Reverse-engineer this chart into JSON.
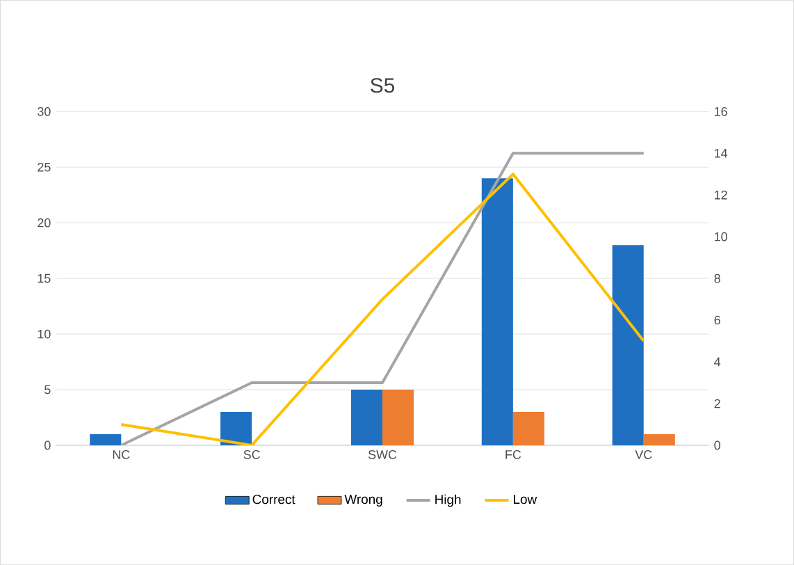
{
  "chart_data": {
    "type": "bar",
    "title": "S5",
    "categories": [
      "NC",
      "SC",
      "SWC",
      "FC",
      "VC"
    ],
    "series": [
      {
        "name": "Correct",
        "color": "#1f70c1",
        "values": [
          1,
          3,
          5,
          24,
          18
        ]
      },
      {
        "name": "Wrong",
        "color": "#ed7d31",
        "values": [
          0,
          0,
          5,
          3,
          1
        ]
      },
      {
        "name": "High",
        "type": "line",
        "axis": "y2",
        "color": "#a5a5a5",
        "values": [
          0,
          3,
          3,
          14,
          14
        ]
      },
      {
        "name": "Low",
        "type": "line",
        "axis": "y2",
        "color": "#ffc000",
        "values": [
          1,
          0,
          7,
          13,
          5
        ]
      }
    ],
    "ylim": [
      0,
      30
    ],
    "yticks": [
      0,
      5,
      10,
      15,
      20,
      25,
      30
    ],
    "y2lim": [
      0,
      16
    ],
    "y2ticks": [
      0,
      2,
      4,
      6,
      8,
      10,
      12,
      14,
      16
    ],
    "grid": "y",
    "legend": "bottom",
    "marker": "none",
    "line_style": "solid"
  }
}
